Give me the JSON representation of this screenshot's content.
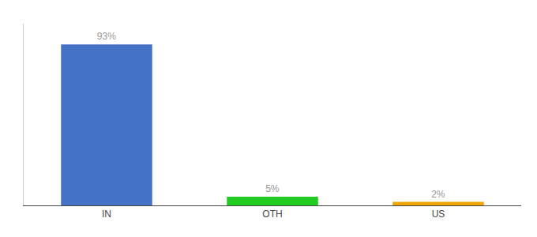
{
  "chart_data": {
    "type": "bar",
    "categories": [
      "IN",
      "OTH",
      "US"
    ],
    "values": [
      93,
      5,
      2
    ],
    "value_labels": [
      "93%",
      "5%",
      "2%"
    ],
    "colors": [
      "#4472c4",
      "#22cc22",
      "#f0a500"
    ],
    "ylim": [
      0,
      105
    ],
    "data_labels": true,
    "tick_labels": "x",
    "grid": false
  }
}
